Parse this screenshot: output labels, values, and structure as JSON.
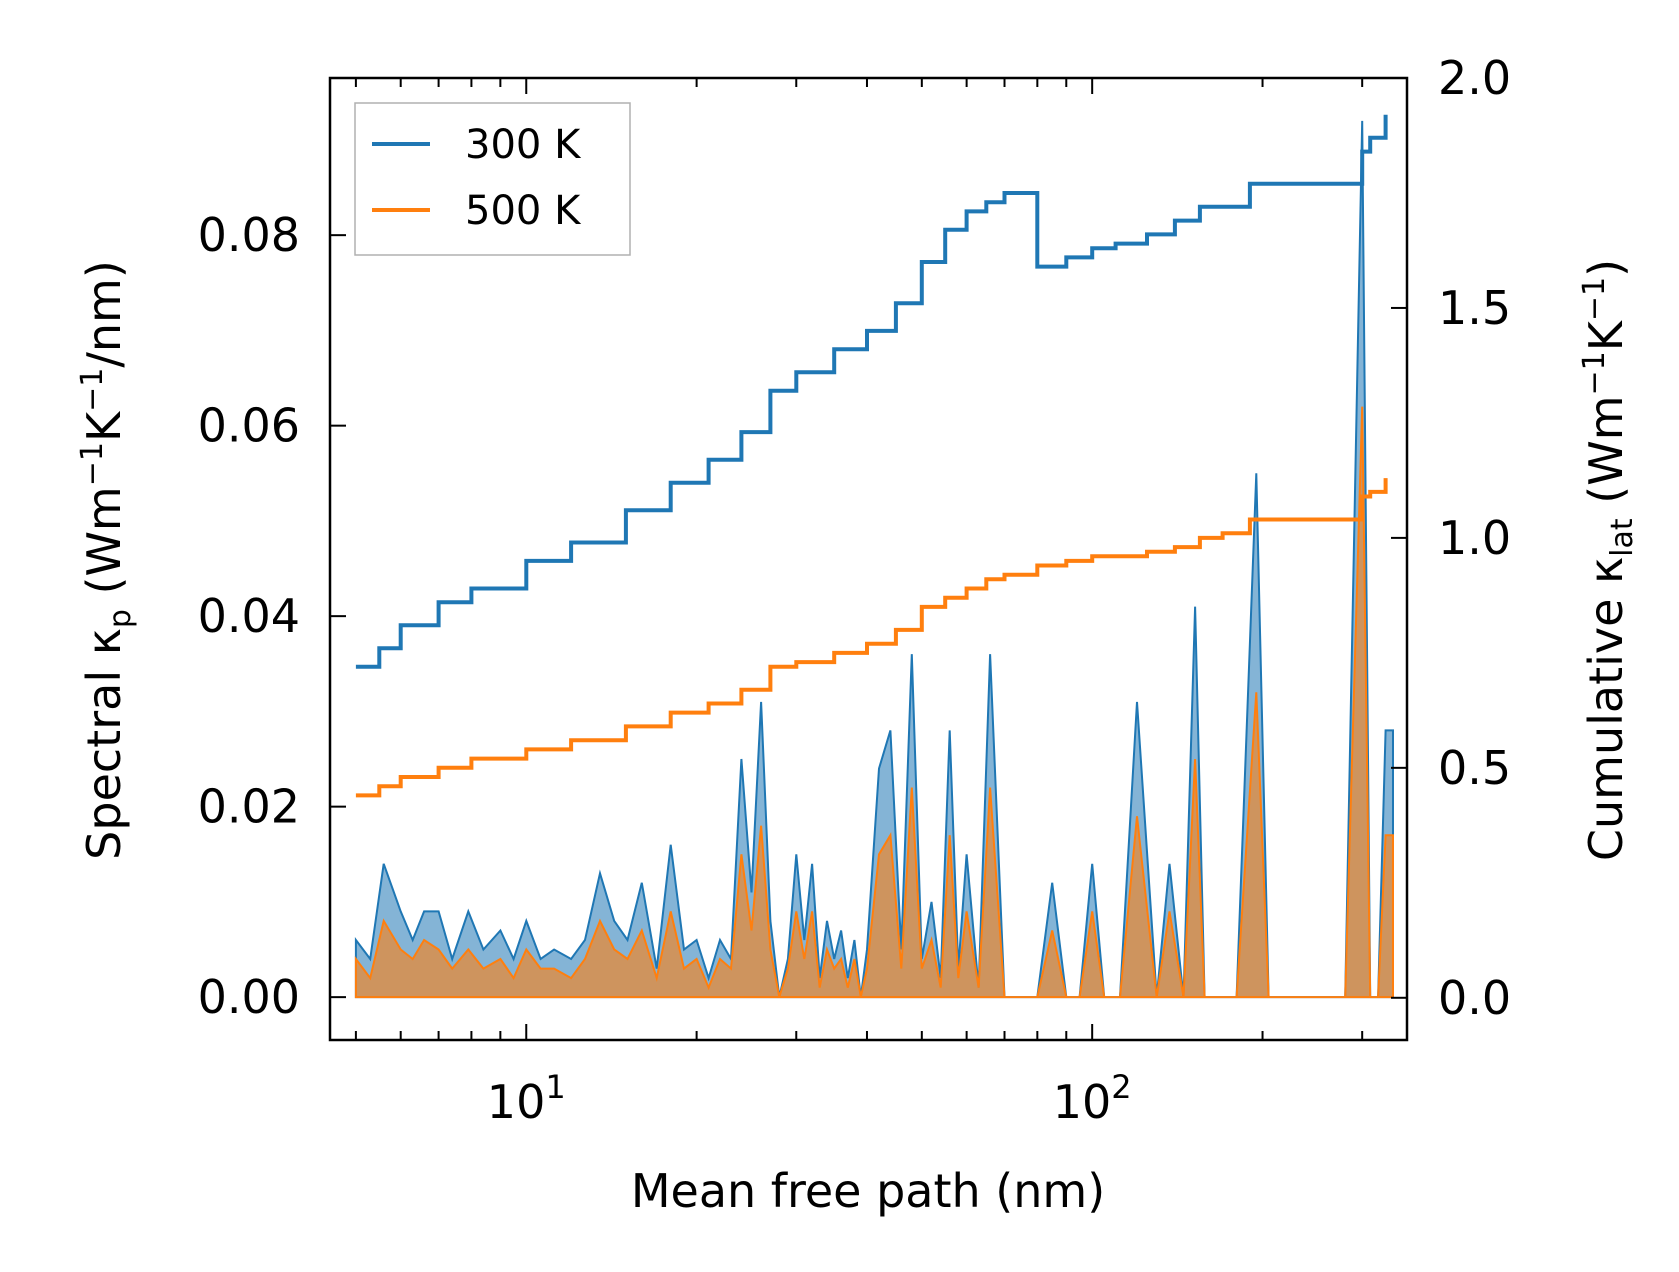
{
  "chart_data": {
    "type": "line",
    "title": "",
    "xlabel": "Mean free path (nm)",
    "ylabel_left_main": "Spectral κ",
    "ylabel_left_sub": "p",
    "ylabel_left_unit_pre": " (Wm",
    "ylabel_left_unit_mid": "K",
    "ylabel_left_unit_post": "/nm)",
    "ylabel_right_main": "Cumulative κ",
    "ylabel_right_sub": "lat",
    "ylabel_right_unit_pre": " (Wm",
    "ylabel_right_unit_mid": "K",
    "ylabel_right_unit_post": ")",
    "exponent_text": "−1",
    "xscale": "log",
    "xlim": [
      4.5,
      360
    ],
    "ylim_left": [
      -0.0045,
      0.0965
    ],
    "ylim_right": [
      -0.0918,
      2.0
    ],
    "x_ticks": [
      {
        "value": 10,
        "base": "10",
        "exp": "1"
      },
      {
        "value": 100,
        "base": "10",
        "exp": "2"
      }
    ],
    "yticks_left": [
      "0.00",
      "0.02",
      "0.04",
      "0.06",
      "0.08"
    ],
    "yticks_right": [
      "0.0",
      "0.5",
      "1.0",
      "1.5",
      "2.0"
    ],
    "legend": {
      "position": "upper-left",
      "entries": [
        "300 K",
        "500 K"
      ]
    },
    "colors": {
      "300 K": "#1f77b4",
      "500 K": "#ff7f0e",
      "fill_300": "#1f77b4",
      "fill_500": "#ff7f0e"
    },
    "series_cumulative": [
      {
        "name": "300 K",
        "axis": "right",
        "x": [
          5.0,
          5.5,
          6.0,
          7.0,
          8.0,
          10.0,
          12.0,
          15.0,
          18.0,
          21.0,
          24.0,
          27.0,
          30.0,
          35.0,
          40.0,
          45.0,
          50.0,
          55.0,
          60.0,
          65.0,
          70.0,
          80.0,
          90.0,
          100.0,
          110.0,
          125.0,
          140.0,
          155.0,
          170.0,
          190.0,
          200.0,
          240.0,
          300.0,
          310.0,
          330.0
        ],
        "y": [
          0.72,
          0.76,
          0.81,
          0.86,
          0.89,
          0.95,
          0.99,
          1.06,
          1.12,
          1.17,
          1.23,
          1.32,
          1.36,
          1.41,
          1.45,
          1.51,
          1.6,
          1.67,
          1.71,
          1.73,
          1.75,
          1.59,
          1.61,
          1.63,
          1.64,
          1.66,
          1.69,
          1.72,
          1.72,
          1.77,
          1.77,
          1.77,
          1.84,
          1.87,
          1.92
        ]
      },
      {
        "name": "500 K",
        "axis": "right",
        "x": [
          5.0,
          5.5,
          6.0,
          7.0,
          8.0,
          10.0,
          12.0,
          15.0,
          18.0,
          21.0,
          24.0,
          27.0,
          30.0,
          35.0,
          40.0,
          45.0,
          50.0,
          55.0,
          60.0,
          65.0,
          70.0,
          80.0,
          90.0,
          100.0,
          110.0,
          125.0,
          140.0,
          155.0,
          170.0,
          190.0,
          200.0,
          240.0,
          300.0,
          310.0,
          330.0
        ],
        "y": [
          0.44,
          0.46,
          0.48,
          0.5,
          0.52,
          0.54,
          0.56,
          0.59,
          0.62,
          0.64,
          0.67,
          0.72,
          0.73,
          0.75,
          0.77,
          0.8,
          0.85,
          0.87,
          0.89,
          0.91,
          0.92,
          0.94,
          0.95,
          0.96,
          0.96,
          0.97,
          0.98,
          1.0,
          1.01,
          1.04,
          1.04,
          1.04,
          1.09,
          1.1,
          1.13
        ]
      }
    ],
    "series_spectral": [
      {
        "name": "300 K",
        "axis": "left",
        "x": [
          5.0,
          5.3,
          5.6,
          6.0,
          6.3,
          6.6,
          7.0,
          7.4,
          7.9,
          8.4,
          9.0,
          9.5,
          10.0,
          10.6,
          11.2,
          12.0,
          12.7,
          13.5,
          14.3,
          15.1,
          16.0,
          17.0,
          18.0,
          19.0,
          20.0,
          21.0,
          22.0,
          23.0,
          24.0,
          25.0,
          26.0,
          27.0,
          28.0,
          29.0,
          30.0,
          31.0,
          32.0,
          33.0,
          34.0,
          35.0,
          36.0,
          37.0,
          38.0,
          39.0,
          40.0,
          42.0,
          44.0,
          46.0,
          48.0,
          50.0,
          52.0,
          54.0,
          56.0,
          58.0,
          60.0,
          63.0,
          66.0,
          70.0,
          75.0,
          80.0,
          85.0,
          90.0,
          95.0,
          100.0,
          105.0,
          112.0,
          120.0,
          130.0,
          137.0,
          145.0,
          152.0,
          158.0,
          165.0,
          180.0,
          195.0,
          205.0,
          230.0,
          280.0,
          300.0,
          310.0,
          320.0,
          330.0,
          340.0
        ],
        "y": [
          0.006,
          0.004,
          0.014,
          0.009,
          0.006,
          0.009,
          0.009,
          0.004,
          0.009,
          0.005,
          0.007,
          0.004,
          0.008,
          0.004,
          0.005,
          0.004,
          0.006,
          0.013,
          0.008,
          0.006,
          0.012,
          0.003,
          0.016,
          0.005,
          0.006,
          0.002,
          0.006,
          0.004,
          0.025,
          0.011,
          0.031,
          0.008,
          0.0,
          0.004,
          0.015,
          0.006,
          0.014,
          0.002,
          0.008,
          0.004,
          0.007,
          0.002,
          0.006,
          0.0,
          0.005,
          0.024,
          0.028,
          0.005,
          0.036,
          0.004,
          0.01,
          0.002,
          0.028,
          0.003,
          0.015,
          0.001,
          0.036,
          0.0,
          0.0,
          0.0,
          0.012,
          0.0,
          0.0,
          0.014,
          0.0,
          0.0,
          0.031,
          0.0,
          0.014,
          0.0,
          0.041,
          0.0,
          0.0,
          0.0,
          0.055,
          0.0,
          0.0,
          0.0,
          0.092,
          0.0,
          0.0,
          0.028,
          0.028
        ]
      },
      {
        "name": "500 K",
        "axis": "left",
        "x": [
          5.0,
          5.3,
          5.6,
          6.0,
          6.3,
          6.6,
          7.0,
          7.4,
          7.9,
          8.4,
          9.0,
          9.5,
          10.0,
          10.6,
          11.2,
          12.0,
          12.7,
          13.5,
          14.3,
          15.1,
          16.0,
          17.0,
          18.0,
          19.0,
          20.0,
          21.0,
          22.0,
          23.0,
          24.0,
          25.0,
          26.0,
          27.0,
          28.0,
          29.0,
          30.0,
          31.0,
          32.0,
          33.0,
          34.0,
          35.0,
          36.0,
          37.0,
          38.0,
          39.0,
          40.0,
          42.0,
          44.0,
          46.0,
          48.0,
          50.0,
          52.0,
          54.0,
          56.0,
          58.0,
          60.0,
          63.0,
          66.0,
          70.0,
          75.0,
          80.0,
          85.0,
          90.0,
          95.0,
          100.0,
          105.0,
          112.0,
          120.0,
          130.0,
          137.0,
          145.0,
          152.0,
          158.0,
          165.0,
          180.0,
          195.0,
          205.0,
          230.0,
          280.0,
          300.0,
          310.0,
          320.0,
          330.0,
          340.0
        ],
        "y": [
          0.004,
          0.002,
          0.008,
          0.005,
          0.004,
          0.006,
          0.005,
          0.003,
          0.005,
          0.003,
          0.004,
          0.002,
          0.005,
          0.003,
          0.003,
          0.002,
          0.004,
          0.008,
          0.005,
          0.004,
          0.007,
          0.002,
          0.009,
          0.003,
          0.004,
          0.001,
          0.004,
          0.003,
          0.015,
          0.007,
          0.018,
          0.005,
          0.0,
          0.003,
          0.009,
          0.004,
          0.009,
          0.001,
          0.005,
          0.003,
          0.004,
          0.001,
          0.004,
          0.0,
          0.003,
          0.015,
          0.017,
          0.003,
          0.022,
          0.003,
          0.006,
          0.001,
          0.017,
          0.002,
          0.009,
          0.001,
          0.022,
          0.0,
          0.0,
          0.0,
          0.007,
          0.0,
          0.0,
          0.009,
          0.0,
          0.0,
          0.019,
          0.0,
          0.009,
          0.0,
          0.025,
          0.0,
          0.0,
          0.0,
          0.032,
          0.0,
          0.0,
          0.0,
          0.062,
          0.0,
          0.0,
          0.017,
          0.017
        ]
      }
    ]
  }
}
